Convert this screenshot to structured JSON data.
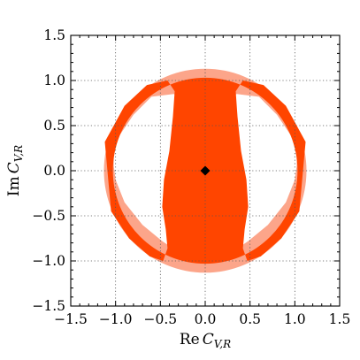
{
  "chart_data": {
    "type": "area",
    "title": "",
    "xlabel": {
      "prefix": "Re",
      "symbol": "C",
      "subscript": "V,R"
    },
    "ylabel": {
      "prefix": "Im",
      "symbol": "C",
      "subscript": "V,R"
    },
    "xlim": [
      -1.5,
      1.5
    ],
    "ylim": [
      -1.5,
      1.5
    ],
    "xticks": [
      -1.5,
      -1.0,
      -0.5,
      0.0,
      0.5,
      1.0,
      1.5
    ],
    "yticks": [
      -1.5,
      -1.0,
      -0.5,
      0.0,
      0.5,
      1.0,
      1.5
    ],
    "xtick_labels": [
      "−1.5",
      "−1.0",
      "−0.5",
      "0.0",
      "0.5",
      "1.0",
      "1.5"
    ],
    "ytick_labels": [
      "−1.5",
      "−1.0",
      "−0.5",
      "0.0",
      "0.5",
      "1.0",
      "1.5"
    ],
    "grid": true,
    "minor_ticks": true,
    "colors": {
      "outer_region": "#fca58a",
      "inner_region": "#ff4500",
      "marker": "#000000"
    },
    "regions": [
      {
        "level": "outer",
        "shape": "disk",
        "center": [
          0.0,
          0.0
        ],
        "radius": 1.13,
        "holes": [
          {
            "x": [
              -0.99,
              -0.8,
              -0.6,
              -0.35,
              -0.22,
              -0.23,
              -0.26,
              -0.3,
              -0.32,
              -0.28,
              -0.26,
              -0.33,
              -0.48,
              -0.7,
              -0.9,
              -1.0,
              -1.02,
              -1.02,
              -1.0
            ],
            "y": [
              0.34,
              0.62,
              0.82,
              0.85,
              0.76,
              0.55,
              0.2,
              -0.1,
              -0.4,
              -0.65,
              -0.82,
              -0.88,
              -0.78,
              -0.6,
              -0.35,
              -0.1,
              0.05,
              0.2,
              0.34
            ]
          },
          {
            "x": [
              0.99,
              0.8,
              0.6,
              0.35,
              0.22,
              0.23,
              0.26,
              0.3,
              0.32,
              0.28,
              0.26,
              0.33,
              0.48,
              0.7,
              0.9,
              1.0,
              1.02,
              1.02,
              1.0
            ],
            "y": [
              0.34,
              0.62,
              0.82,
              0.85,
              0.76,
              0.55,
              0.2,
              -0.1,
              -0.4,
              -0.65,
              -0.82,
              -0.88,
              -0.78,
              -0.6,
              -0.35,
              -0.1,
              0.05,
              0.2,
              0.34
            ]
          }
        ]
      },
      {
        "level": "inner",
        "shape": "disk",
        "center": [
          0.0,
          0.0
        ],
        "radius": 1.03,
        "holes": [
          {
            "x": [
              -1.12,
              -0.9,
              -0.65,
              -0.42,
              -0.34,
              -0.36,
              -0.4,
              -0.46,
              -0.48,
              -0.44,
              -0.42,
              -0.47,
              -0.62,
              -0.85,
              -1.05,
              -1.12
            ],
            "y": [
              0.32,
              0.72,
              0.95,
              1.0,
              0.88,
              0.6,
              0.22,
              -0.1,
              -0.4,
              -0.65,
              -0.86,
              -1.0,
              -0.95,
              -0.75,
              -0.45,
              0.32
            ]
          },
          {
            "x": [
              1.12,
              0.9,
              0.65,
              0.42,
              0.34,
              0.36,
              0.4,
              0.46,
              0.48,
              0.44,
              0.42,
              0.47,
              0.62,
              0.85,
              1.05,
              1.12
            ],
            "y": [
              0.32,
              0.72,
              0.95,
              1.0,
              0.88,
              0.6,
              0.22,
              -0.1,
              -0.4,
              -0.65,
              -0.86,
              -1.0,
              -0.95,
              -0.75,
              -0.45,
              0.32
            ]
          }
        ]
      }
    ],
    "points": [
      {
        "x": 0.0,
        "y": 0.0,
        "marker": "diamond"
      }
    ]
  }
}
